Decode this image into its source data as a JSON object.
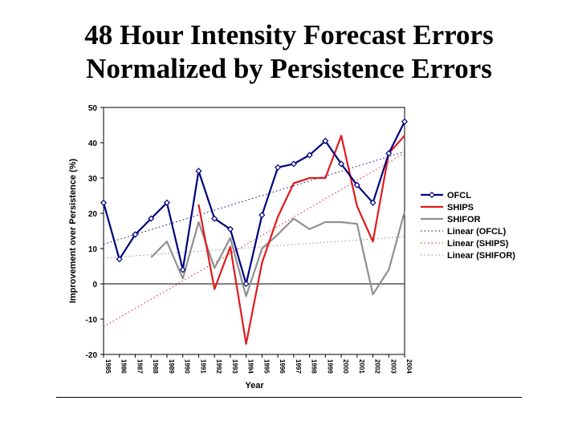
{
  "page": {
    "title_line1": "48 Hour Intensity Forecast Errors",
    "title_line2": "Normalized by Persistence Errors"
  },
  "chart_data": {
    "type": "line",
    "xlabel": "Year",
    "ylabel": "Improvement over Persistence (%)",
    "ylim": [
      -20,
      50
    ],
    "yticks": [
      50,
      40,
      30,
      20,
      10,
      0,
      -10,
      -20
    ],
    "categories": [
      "1985",
      "1986",
      "1987",
      "1988",
      "1989",
      "1990",
      "1991",
      "1992",
      "1993",
      "1994",
      "1995",
      "1996",
      "1997",
      "1998",
      "1999",
      "2000",
      "2001",
      "2002",
      "2003",
      "2004"
    ],
    "series": [
      {
        "name": "OFCL",
        "color": "#000080",
        "marker": "diamond",
        "values": [
          23,
          7,
          14,
          18.5,
          23,
          4,
          32,
          18.5,
          15.5,
          0,
          19.5,
          33,
          34,
          36.5,
          40.5,
          34,
          28,
          23,
          37,
          46
        ]
      },
      {
        "name": "SHIPS",
        "color": "#e31a1c",
        "marker": "none",
        "values": [
          null,
          null,
          null,
          null,
          null,
          null,
          22.5,
          -1.5,
          10.5,
          -17,
          6,
          19,
          28.5,
          30,
          30,
          42,
          22,
          12,
          37,
          42
        ]
      },
      {
        "name": "SHIFOR",
        "color": "#909090",
        "marker": "none",
        "values": [
          null,
          null,
          null,
          7.5,
          12,
          1.5,
          17.5,
          4.5,
          13,
          -3.5,
          10,
          14,
          18.5,
          15.5,
          17.5,
          17.5,
          17,
          -3,
          4,
          20.5
        ]
      }
    ],
    "trendlines": [
      {
        "name": "Linear (OFCL)",
        "color": "#000080"
      },
      {
        "name": "Linear (SHIPS)",
        "color": "#e31a1c"
      },
      {
        "name": "Linear (SHIFOR)",
        "color": "#909090"
      }
    ],
    "grid": false,
    "legend_position": "right"
  }
}
